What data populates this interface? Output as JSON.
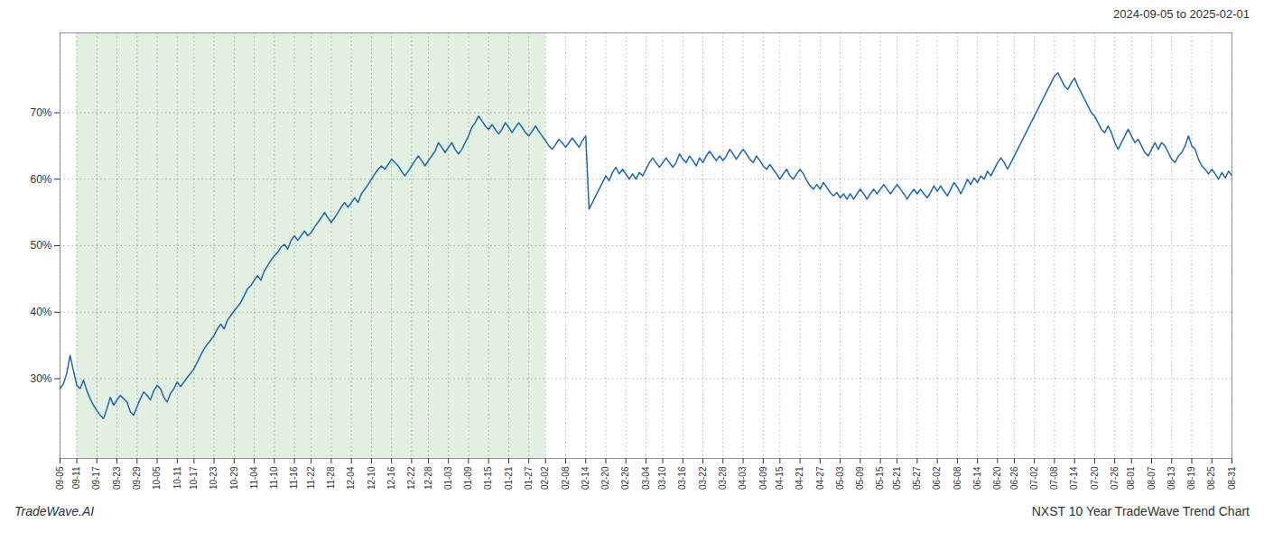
{
  "chart_data": {
    "type": "line",
    "annotations": [
      "2024-09-05 to 2025-02-01",
      "TradeWave.AI",
      "NXST 10 Year TradeWave Trend Chart"
    ],
    "color": "#2266aa",
    "grid": true,
    "ylim": [
      18,
      82
    ],
    "yticks": [
      {
        "value": 30,
        "label": "30%"
      },
      {
        "value": 40,
        "label": "40%"
      },
      {
        "value": 50,
        "label": "50%"
      },
      {
        "value": 60,
        "label": "60%"
      },
      {
        "value": 70,
        "label": "70%"
      }
    ],
    "shade": {
      "from": "09-11",
      "to": "02-02",
      "color": "#d4ead4"
    },
    "categories": [
      "09-05",
      null,
      null,
      null,
      null,
      "09-11",
      null,
      null,
      null,
      null,
      null,
      "09-17",
      null,
      null,
      null,
      null,
      null,
      "09-23",
      null,
      null,
      null,
      null,
      null,
      "09-29",
      null,
      null,
      null,
      null,
      null,
      "10-05",
      null,
      null,
      null,
      null,
      null,
      "10-11",
      null,
      null,
      null,
      null,
      "10-17",
      null,
      null,
      null,
      null,
      null,
      "10-23",
      null,
      null,
      null,
      null,
      null,
      "10-29",
      null,
      null,
      null,
      null,
      null,
      "11-04",
      null,
      null,
      null,
      null,
      null,
      "11-10",
      null,
      null,
      null,
      null,
      null,
      "11-16",
      null,
      null,
      null,
      null,
      "11-22",
      null,
      null,
      null,
      null,
      null,
      "11-28",
      null,
      null,
      null,
      null,
      null,
      "12-04",
      null,
      null,
      null,
      null,
      null,
      "12-10",
      null,
      null,
      null,
      null,
      null,
      "12-16",
      null,
      null,
      null,
      null,
      null,
      "12-22",
      null,
      null,
      null,
      null,
      "12-28",
      null,
      null,
      null,
      null,
      null,
      "01-03",
      null,
      null,
      null,
      null,
      null,
      "01-09",
      null,
      null,
      null,
      null,
      null,
      "01-15",
      null,
      null,
      null,
      null,
      null,
      "01-21",
      null,
      null,
      null,
      null,
      null,
      "01-27",
      null,
      null,
      null,
      null,
      "02-02",
      null,
      null,
      null,
      null,
      null,
      "02-08",
      null,
      null,
      null,
      null,
      null,
      "02-14",
      null,
      null,
      null,
      null,
      null,
      "02-20",
      null,
      null,
      null,
      null,
      null,
      "02-26",
      null,
      null,
      null,
      null,
      null,
      "03-04",
      null,
      null,
      null,
      null,
      "03-10",
      null,
      null,
      null,
      null,
      null,
      "03-16",
      null,
      null,
      null,
      null,
      null,
      "03-22",
      null,
      null,
      null,
      null,
      null,
      "03-28",
      null,
      null,
      null,
      null,
      null,
      "04-03",
      null,
      null,
      null,
      null,
      null,
      "04-09",
      null,
      null,
      null,
      null,
      "04-15",
      null,
      null,
      null,
      null,
      null,
      "04-21",
      null,
      null,
      null,
      null,
      null,
      "04-27",
      null,
      null,
      null,
      null,
      null,
      "05-03",
      null,
      null,
      null,
      null,
      null,
      "05-09",
      null,
      null,
      null,
      null,
      null,
      "05-15",
      null,
      null,
      null,
      null,
      "05-21",
      null,
      null,
      null,
      null,
      null,
      "05-27",
      null,
      null,
      null,
      null,
      null,
      "06-02",
      null,
      null,
      null,
      null,
      null,
      "06-08",
      null,
      null,
      null,
      null,
      null,
      "06-14",
      null,
      null,
      null,
      null,
      null,
      "06-20",
      null,
      null,
      null,
      null,
      "06-26",
      null,
      null,
      null,
      null,
      null,
      "07-02",
      null,
      null,
      null,
      null,
      null,
      "07-08",
      null,
      null,
      null,
      null,
      null,
      "07-14",
      null,
      null,
      null,
      null,
      null,
      "07-20",
      null,
      null,
      null,
      null,
      null,
      "07-26",
      null,
      null,
      null,
      null,
      "08-01",
      null,
      null,
      null,
      null,
      null,
      "08-07",
      null,
      null,
      null,
      null,
      null,
      "08-13",
      null,
      null,
      null,
      null,
      null,
      "08-19",
      null,
      null,
      null,
      null,
      null,
      "08-25",
      null,
      null,
      null,
      null,
      null,
      "08-31"
    ],
    "values": [
      28.5,
      29.2,
      30.8,
      33.5,
      31.2,
      29.0,
      28.5,
      29.8,
      28.2,
      27.0,
      26.0,
      25.2,
      24.5,
      24.0,
      25.5,
      27.2,
      26.0,
      26.8,
      27.5,
      27.0,
      26.5,
      25.0,
      24.5,
      25.8,
      27.0,
      28.0,
      27.5,
      26.8,
      28.2,
      29.0,
      28.5,
      27.2,
      26.5,
      27.8,
      28.5,
      29.5,
      28.8,
      29.5,
      30.2,
      30.8,
      31.5,
      32.5,
      33.5,
      34.5,
      35.2,
      35.8,
      36.5,
      37.5,
      38.2,
      37.5,
      38.8,
      39.5,
      40.2,
      40.8,
      41.5,
      42.5,
      43.5,
      44.0,
      44.8,
      45.5,
      44.8,
      46.2,
      47.0,
      47.8,
      48.5,
      49.0,
      49.8,
      50.2,
      49.5,
      50.8,
      51.5,
      50.8,
      51.5,
      52.2,
      51.5,
      52.0,
      52.8,
      53.5,
      54.2,
      55.0,
      54.2,
      53.5,
      54.2,
      55.0,
      55.8,
      56.5,
      55.8,
      56.5,
      57.2,
      56.5,
      57.8,
      58.5,
      59.2,
      60.0,
      60.8,
      61.5,
      62.0,
      61.5,
      62.2,
      63.0,
      62.5,
      62.0,
      61.2,
      60.5,
      61.2,
      62.0,
      62.8,
      63.5,
      62.8,
      62.0,
      62.8,
      63.5,
      64.2,
      65.5,
      64.8,
      64.0,
      64.8,
      65.5,
      64.5,
      63.8,
      64.5,
      65.5,
      66.5,
      67.8,
      68.5,
      69.5,
      68.8,
      68.0,
      67.5,
      68.2,
      67.5,
      66.8,
      67.5,
      68.5,
      67.8,
      67.0,
      67.8,
      68.5,
      67.8,
      67.0,
      66.5,
      67.2,
      68.0,
      67.2,
      66.5,
      65.8,
      65.0,
      64.5,
      65.2,
      66.0,
      65.5,
      64.8,
      65.5,
      66.2,
      65.5,
      64.8,
      65.8,
      66.5,
      55.5,
      56.5,
      57.5,
      58.5,
      59.5,
      60.5,
      59.8,
      61.0,
      61.8,
      60.8,
      61.5,
      60.8,
      60.0,
      60.8,
      60.0,
      61.0,
      60.5,
      61.5,
      62.5,
      63.2,
      62.5,
      61.8,
      62.5,
      63.2,
      62.5,
      61.8,
      62.5,
      63.8,
      63.0,
      62.5,
      63.5,
      62.8,
      62.0,
      63.2,
      62.5,
      63.5,
      64.2,
      63.5,
      62.8,
      63.5,
      62.8,
      63.5,
      64.5,
      63.8,
      63.0,
      63.8,
      64.5,
      63.8,
      63.0,
      62.5,
      63.5,
      62.8,
      62.0,
      61.5,
      62.2,
      61.5,
      60.8,
      60.0,
      60.8,
      61.5,
      60.5,
      60.0,
      60.8,
      61.5,
      60.8,
      59.8,
      59.0,
      58.5,
      59.2,
      58.5,
      59.5,
      58.8,
      58.0,
      57.5,
      58.0,
      57.2,
      57.8,
      57.0,
      57.8,
      57.0,
      57.8,
      58.5,
      57.8,
      57.0,
      57.8,
      58.5,
      57.8,
      58.5,
      59.2,
      58.5,
      57.8,
      58.5,
      59.2,
      58.5,
      57.8,
      57.0,
      57.8,
      58.5,
      57.8,
      58.5,
      57.8,
      57.2,
      58.0,
      59.0,
      58.2,
      59.0,
      58.2,
      57.5,
      58.5,
      59.5,
      58.8,
      57.8,
      58.8,
      60.0,
      59.2,
      60.2,
      59.5,
      60.5,
      60.0,
      61.2,
      60.5,
      61.5,
      62.5,
      63.2,
      62.5,
      61.5,
      62.5,
      63.5,
      64.5,
      65.5,
      66.5,
      67.5,
      68.5,
      69.5,
      70.5,
      71.5,
      72.5,
      73.5,
      74.5,
      75.5,
      76.0,
      75.0,
      74.0,
      73.5,
      74.5,
      75.2,
      74.0,
      73.0,
      72.0,
      71.0,
      70.0,
      69.5,
      68.5,
      67.5,
      67.0,
      68.0,
      67.0,
      65.5,
      64.5,
      65.5,
      66.5,
      67.5,
      66.5,
      65.5,
      66.0,
      65.0,
      64.0,
      63.5,
      64.5,
      65.5,
      64.5,
      65.5,
      65.0,
      64.0,
      63.0,
      62.5,
      63.5,
      64.0,
      65.0,
      66.5,
      65.0,
      64.5,
      63.0,
      62.0,
      61.5,
      60.8,
      61.5,
      60.8,
      60.0,
      61.0,
      60.2,
      61.2,
      60.5
    ]
  }
}
